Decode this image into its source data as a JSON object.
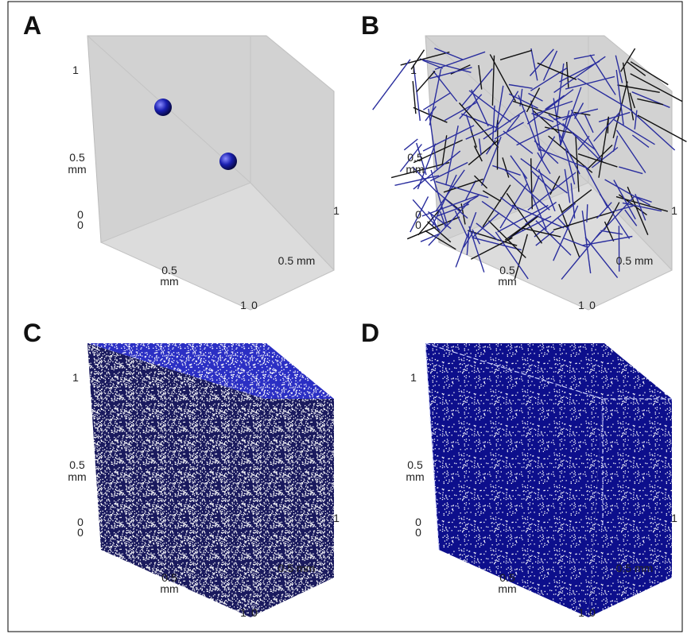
{
  "panels": [
    {
      "letter": "A",
      "axis_labels": [
        "1",
        "0.5",
        "mm",
        "0",
        "0",
        "0.5",
        "mm",
        "1",
        "0",
        "0.5 mm",
        "1"
      ]
    },
    {
      "letter": "B",
      "axis_labels": [
        "1",
        "0.5",
        "mm",
        "0",
        "0",
        "0.5",
        "mm",
        "1",
        "0",
        "0.5 mm",
        "1"
      ]
    },
    {
      "letter": "C",
      "axis_labels": [
        "1",
        "0.5",
        "mm",
        "0",
        "0",
        "0.5",
        "mm",
        "1",
        "0",
        "0.5 mm",
        "1"
      ]
    },
    {
      "letter": "D",
      "axis_labels": [
        "1",
        "0.5",
        "mm",
        "0",
        "0",
        "0.5",
        "mm",
        "1",
        "0",
        "0.5 mm",
        "1"
      ]
    }
  ]
}
